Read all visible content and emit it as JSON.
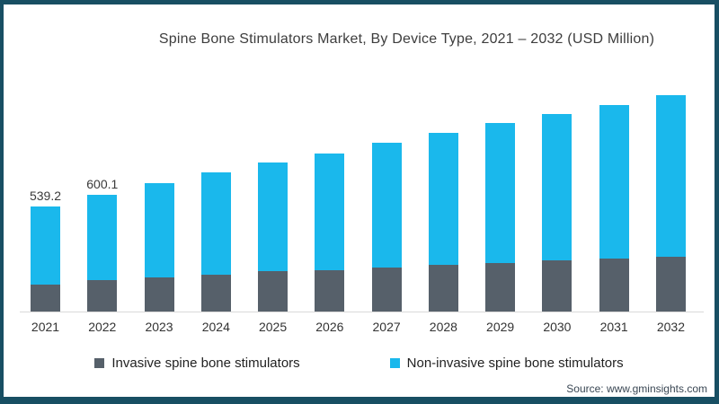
{
  "title": "Spine Bone Stimulators Market, By Device Type, 2021 – 2032 (USD Million)",
  "source": "Source: www.gminsights.com",
  "colors": {
    "frame": "#184f63",
    "background": "#ffffff",
    "invasive": "#56606a",
    "non_invasive": "#1ab8ec",
    "axis_line": "#d9d9d9"
  },
  "legend": {
    "items": [
      {
        "label": "Invasive spine bone stimulators",
        "color": "#56606a"
      },
      {
        "label": "Non-invasive spine bone stimulators",
        "color": "#1ab8ec"
      }
    ]
  },
  "chart_data": {
    "type": "bar",
    "stacked": true,
    "title": "Spine Bone Stimulators Market, By Device Type, 2021 – 2032 (USD Million)",
    "unit": "USD Million",
    "categories": [
      "2021",
      "2022",
      "2023",
      "2024",
      "2025",
      "2026",
      "2027",
      "2028",
      "2029",
      "2030",
      "2031",
      "2032"
    ],
    "series": [
      {
        "name": "Invasive spine bone stimulators",
        "color": "#56606a",
        "values": [
          138.4,
          161.4,
          175.0,
          189.1,
          207.6,
          212.2,
          226.0,
          239.9,
          249.1,
          262.9,
          272.1,
          281.3
        ]
      },
      {
        "name": "Non-invasive spine bone stimulators",
        "color": "#1ab8ec",
        "values": [
          400.8,
          438.7,
          484.5,
          525.8,
          558.0,
          599.5,
          641.1,
          677.9,
          719.4,
          751.7,
          788.7,
          830.2
        ]
      }
    ],
    "totals": [
      539.2,
      600.1,
      659.5,
      714.9,
      765.6,
      811.7,
      867.1,
      917.8,
      968.5,
      1014.6,
      1060.8,
      1111.5
    ],
    "data_labels": {
      "2021": "539.2",
      "2022": "600.1"
    },
    "ylim": [
      0,
      1150
    ],
    "grid": false,
    "legend_position": "bottom",
    "xlabel": "",
    "ylabel": ""
  }
}
